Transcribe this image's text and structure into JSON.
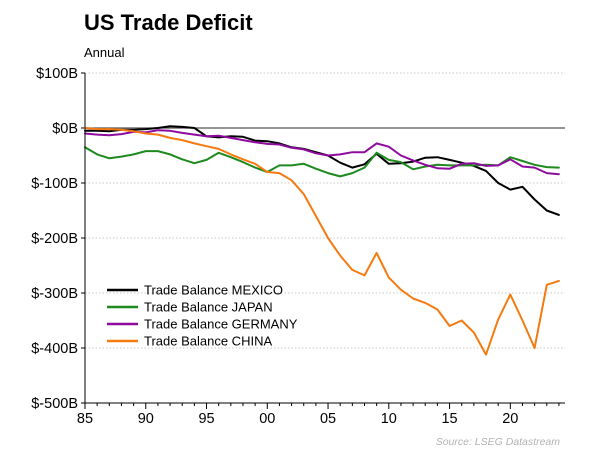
{
  "title": "US Trade Deficit",
  "subtitle": "Annual",
  "source": "Source: LSEG Datastream",
  "chart_data": {
    "type": "line",
    "title": "US Trade Deficit",
    "subtitle": "Annual",
    "xlabel": "",
    "ylabel": "",
    "x_ticks": [
      {
        "year": 1985,
        "label": "85"
      },
      {
        "year": 1990,
        "label": "90"
      },
      {
        "year": 1995,
        "label": "95"
      },
      {
        "year": 2000,
        "label": "00"
      },
      {
        "year": 2005,
        "label": "05"
      },
      {
        "year": 2010,
        "label": "10"
      },
      {
        "year": 2015,
        "label": "15"
      },
      {
        "year": 2020,
        "label": "20"
      }
    ],
    "y_ticks": [
      {
        "value": 100,
        "label": "$100B"
      },
      {
        "value": 0,
        "label": "$0B"
      },
      {
        "value": -100,
        "label": "$-100B"
      },
      {
        "value": -200,
        "label": "$-200B"
      },
      {
        "value": -300,
        "label": "$-300B"
      },
      {
        "value": -400,
        "label": "$-400B"
      },
      {
        "value": -500,
        "label": "$-500B"
      }
    ],
    "xlim": [
      1985,
      2024.5
    ],
    "ylim": [
      -500,
      100
    ],
    "grid": "horizontal-dotted",
    "zero_line": true,
    "legend_position": "lower-left",
    "series": [
      {
        "name": "Trade Balance MEXICO",
        "color": "#000000",
        "points": [
          [
            1985,
            -5
          ],
          [
            1986,
            -5
          ],
          [
            1987,
            -6
          ],
          [
            1988,
            -3
          ],
          [
            1989,
            -3
          ],
          [
            1990,
            -2
          ],
          [
            1991,
            0
          ],
          [
            1992,
            3
          ],
          [
            1993,
            2
          ],
          [
            1994,
            0
          ],
          [
            1995,
            -15
          ],
          [
            1996,
            -17
          ],
          [
            1997,
            -15
          ],
          [
            1998,
            -16
          ],
          [
            1999,
            -23
          ],
          [
            2000,
            -24
          ],
          [
            2001,
            -28
          ],
          [
            2002,
            -35
          ],
          [
            2003,
            -38
          ],
          [
            2004,
            -44
          ],
          [
            2005,
            -50
          ],
          [
            2006,
            -63
          ],
          [
            2007,
            -72
          ],
          [
            2008,
            -66
          ],
          [
            2009,
            -47
          ],
          [
            2010,
            -65
          ],
          [
            2011,
            -64
          ],
          [
            2012,
            -61
          ],
          [
            2013,
            -54
          ],
          [
            2014,
            -53
          ],
          [
            2015,
            -58
          ],
          [
            2016,
            -63
          ],
          [
            2017,
            -69
          ],
          [
            2018,
            -78
          ],
          [
            2019,
            -100
          ],
          [
            2020,
            -112
          ],
          [
            2021,
            -107
          ],
          [
            2022,
            -130
          ],
          [
            2023,
            -150
          ],
          [
            2024,
            -158
          ]
        ]
      },
      {
        "name": "Trade Balance JAPAN",
        "color": "#1e8a1e",
        "points": [
          [
            1985,
            -35
          ],
          [
            1986,
            -48
          ],
          [
            1987,
            -55
          ],
          [
            1988,
            -52
          ],
          [
            1989,
            -48
          ],
          [
            1990,
            -42
          ],
          [
            1991,
            -42
          ],
          [
            1992,
            -48
          ],
          [
            1993,
            -57
          ],
          [
            1994,
            -64
          ],
          [
            1995,
            -58
          ],
          [
            1996,
            -45
          ],
          [
            1997,
            -53
          ],
          [
            1998,
            -62
          ],
          [
            1999,
            -72
          ],
          [
            2000,
            -80
          ],
          [
            2001,
            -68
          ],
          [
            2002,
            -68
          ],
          [
            2003,
            -65
          ],
          [
            2004,
            -74
          ],
          [
            2005,
            -82
          ],
          [
            2006,
            -88
          ],
          [
            2007,
            -82
          ],
          [
            2008,
            -72
          ],
          [
            2009,
            -45
          ],
          [
            2010,
            -58
          ],
          [
            2011,
            -62
          ],
          [
            2012,
            -75
          ],
          [
            2013,
            -70
          ],
          [
            2014,
            -67
          ],
          [
            2015,
            -68
          ],
          [
            2016,
            -68
          ],
          [
            2017,
            -68
          ],
          [
            2018,
            -67
          ],
          [
            2019,
            -68
          ],
          [
            2020,
            -53
          ],
          [
            2021,
            -60
          ],
          [
            2022,
            -67
          ],
          [
            2023,
            -71
          ],
          [
            2024,
            -72
          ]
        ]
      },
      {
        "name": "Trade Balance GERMANY",
        "color": "#8e0b9e",
        "points": [
          [
            1985,
            -10
          ],
          [
            1986,
            -12
          ],
          [
            1987,
            -13
          ],
          [
            1988,
            -11
          ],
          [
            1989,
            -7
          ],
          [
            1990,
            -8
          ],
          [
            1991,
            -4
          ],
          [
            1992,
            -5
          ],
          [
            1993,
            -9
          ],
          [
            1994,
            -12
          ],
          [
            1995,
            -15
          ],
          [
            1996,
            -14
          ],
          [
            1997,
            -18
          ],
          [
            1998,
            -22
          ],
          [
            1999,
            -26
          ],
          [
            2000,
            -29
          ],
          [
            2001,
            -30
          ],
          [
            2002,
            -36
          ],
          [
            2003,
            -39
          ],
          [
            2004,
            -46
          ],
          [
            2005,
            -50
          ],
          [
            2006,
            -48
          ],
          [
            2007,
            -44
          ],
          [
            2008,
            -44
          ],
          [
            2009,
            -28
          ],
          [
            2010,
            -34
          ],
          [
            2011,
            -50
          ],
          [
            2012,
            -59
          ],
          [
            2013,
            -67
          ],
          [
            2014,
            -73
          ],
          [
            2015,
            -74
          ],
          [
            2016,
            -65
          ],
          [
            2017,
            -64
          ],
          [
            2018,
            -69
          ],
          [
            2019,
            -68
          ],
          [
            2020,
            -57
          ],
          [
            2021,
            -70
          ],
          [
            2022,
            -72
          ],
          [
            2023,
            -82
          ],
          [
            2024,
            -84
          ]
        ]
      },
      {
        "name": "Trade Balance CHINA",
        "color": "#f57a10",
        "points": [
          [
            1985,
            0
          ],
          [
            1986,
            -2
          ],
          [
            1987,
            -2
          ],
          [
            1988,
            -3
          ],
          [
            1989,
            -6
          ],
          [
            1990,
            -10
          ],
          [
            1991,
            -12
          ],
          [
            1992,
            -18
          ],
          [
            1993,
            -22
          ],
          [
            1994,
            -28
          ],
          [
            1995,
            -33
          ],
          [
            1996,
            -38
          ],
          [
            1997,
            -48
          ],
          [
            1998,
            -57
          ],
          [
            1999,
            -65
          ],
          [
            2000,
            -80
          ],
          [
            2001,
            -82
          ],
          [
            2002,
            -95
          ],
          [
            2003,
            -120
          ],
          [
            2004,
            -160
          ],
          [
            2005,
            -200
          ],
          [
            2006,
            -232
          ],
          [
            2007,
            -258
          ],
          [
            2008,
            -268
          ],
          [
            2009,
            -227
          ],
          [
            2010,
            -272
          ],
          [
            2011,
            -294
          ],
          [
            2012,
            -310
          ],
          [
            2013,
            -318
          ],
          [
            2014,
            -330
          ],
          [
            2015,
            -360
          ],
          [
            2016,
            -350
          ],
          [
            2017,
            -372
          ],
          [
            2018,
            -412
          ],
          [
            2019,
            -348
          ],
          [
            2020,
            -303
          ],
          [
            2021,
            -350
          ],
          [
            2022,
            -400
          ],
          [
            2023,
            -285
          ],
          [
            2024,
            -278
          ]
        ]
      }
    ]
  }
}
